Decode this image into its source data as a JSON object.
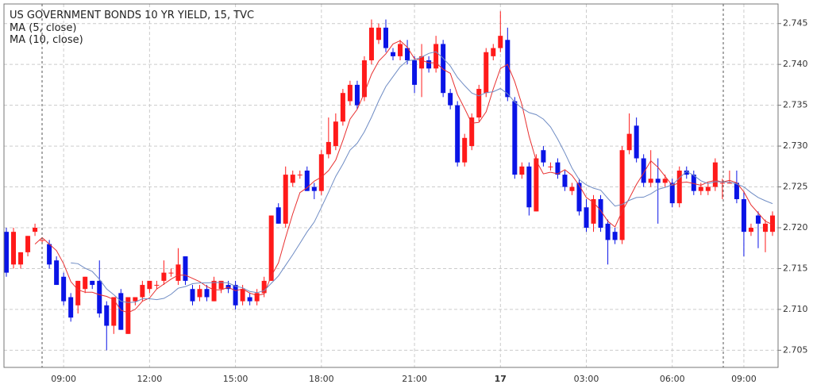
{
  "chart_data": {
    "type": "candlestick",
    "title": "US GOVERNMENT BONDS 10 YR YIELD, 15, TVC",
    "up_color": "#ff1a1a",
    "down_color": "#0a14e6",
    "indicators": [
      {
        "name": "MA (5, close)",
        "period": 5,
        "color": "#e83030"
      },
      {
        "name": "MA (10, close)",
        "period": 10,
        "color": "#6f8cc4"
      }
    ],
    "ylim": [
      2.7029,
      2.7474
    ],
    "yticks": [
      2.705,
      {
        "value": 2.71,
        "label": "2.710"
      },
      2.715,
      {
        "value": 2.72,
        "label": "2.720"
      },
      2.725,
      {
        "value": 2.73,
        "label": "2.730"
      },
      2.735,
      {
        "value": 2.74,
        "label": "2.740"
      },
      2.745
    ],
    "grid": true,
    "categories": [
      null,
      null,
      null,
      null,
      null,
      null,
      null,
      null,
      "09:00",
      null,
      null,
      null,
      null,
      null,
      null,
      null,
      null,
      null,
      null,
      null,
      "12:00",
      null,
      null,
      null,
      null,
      null,
      null,
      null,
      null,
      null,
      null,
      null,
      "15:00",
      null,
      null,
      null,
      null,
      null,
      null,
      null,
      null,
      null,
      null,
      null,
      "18:00",
      null,
      null,
      null,
      null,
      null,
      null,
      null,
      null,
      null,
      null,
      null,
      null,
      "21:00",
      null,
      null,
      null,
      null,
      null,
      null,
      null,
      null,
      null,
      null,
      null,
      "17",
      null,
      null,
      null,
      null,
      null,
      null,
      null,
      null,
      null,
      null,
      null,
      "03:00",
      null,
      null,
      null,
      null,
      null,
      null,
      null,
      null,
      null,
      null,
      null,
      "06:00",
      null,
      null,
      null,
      null,
      null,
      null,
      null,
      null,
      null,
      "09:00",
      null,
      null,
      null,
      null
    ],
    "ohlc": [
      [
        2.7195,
        2.72,
        2.714,
        2.7145
      ],
      [
        2.7155,
        2.72,
        2.715,
        2.7195
      ],
      [
        2.7155,
        2.717,
        2.715,
        2.717
      ],
      [
        2.717,
        2.719,
        2.7165,
        2.719
      ],
      [
        2.7195,
        2.7205,
        2.719,
        2.72
      ],
      [
        2.7185,
        2.7185,
        2.718,
        2.7185
      ],
      [
        2.718,
        2.7185,
        2.715,
        2.7155
      ],
      [
        2.716,
        2.7165,
        2.713,
        2.713
      ],
      [
        2.714,
        2.7145,
        2.7105,
        2.711
      ],
      [
        2.7115,
        2.712,
        2.7085,
        2.709
      ],
      [
        2.7105,
        2.7135,
        2.7095,
        2.7135
      ],
      [
        2.7125,
        2.714,
        2.712,
        2.714
      ],
      [
        2.7135,
        2.7135,
        2.7125,
        2.713
      ],
      [
        2.7135,
        2.716,
        2.709,
        2.7095
      ],
      [
        2.7105,
        2.711,
        2.705,
        2.708
      ],
      [
        2.708,
        2.7115,
        2.707,
        2.7115
      ],
      [
        2.712,
        2.7125,
        2.7075,
        2.7075
      ],
      [
        2.707,
        2.7115,
        2.707,
        2.7115
      ],
      [
        2.711,
        2.7115,
        2.7105,
        2.7115
      ],
      [
        2.7115,
        2.7135,
        2.711,
        2.713
      ],
      [
        2.7125,
        2.7135,
        2.712,
        2.7135
      ],
      [
        2.713,
        2.7135,
        2.7125,
        2.713
      ],
      [
        2.7135,
        2.716,
        2.713,
        2.7145
      ],
      [
        2.7145,
        2.715,
        2.714,
        2.7145
      ],
      [
        2.7135,
        2.7175,
        2.713,
        2.7155
      ],
      [
        2.7165,
        2.7165,
        2.713,
        2.7135
      ],
      [
        2.7125,
        2.713,
        2.7105,
        2.711
      ],
      [
        2.7115,
        2.713,
        2.711,
        2.7125
      ],
      [
        2.7125,
        2.713,
        2.711,
        2.7115
      ],
      [
        2.711,
        2.714,
        2.711,
        2.7135
      ],
      [
        2.7125,
        2.7135,
        2.712,
        2.7135
      ],
      [
        2.713,
        2.7135,
        2.712,
        2.7125
      ],
      [
        2.713,
        2.7135,
        2.71,
        2.7105
      ],
      [
        2.711,
        2.713,
        2.7105,
        2.7125
      ],
      [
        2.7115,
        2.712,
        2.7105,
        2.711
      ],
      [
        2.711,
        2.7125,
        2.7105,
        2.712
      ],
      [
        2.712,
        2.714,
        2.7115,
        2.7135
      ],
      [
        2.7135,
        2.7215,
        2.7135,
        2.7215
      ],
      [
        2.7225,
        2.723,
        2.7205,
        2.7205
      ],
      [
        2.7205,
        2.7275,
        2.72,
        2.7265
      ],
      [
        2.7255,
        2.727,
        2.725,
        2.7265
      ],
      [
        2.7265,
        2.727,
        2.726,
        2.7265
      ],
      [
        2.727,
        2.7275,
        2.7245,
        2.7245
      ],
      [
        2.725,
        2.7255,
        2.7235,
        2.7245
      ],
      [
        2.7245,
        2.7295,
        2.724,
        2.729
      ],
      [
        2.729,
        2.7335,
        2.7285,
        2.7305
      ],
      [
        2.73,
        2.734,
        2.7295,
        2.733
      ],
      [
        2.733,
        2.737,
        2.7325,
        2.7365
      ],
      [
        2.7355,
        2.738,
        2.735,
        2.7375
      ],
      [
        2.7375,
        2.738,
        2.7345,
        2.735
      ],
      [
        2.736,
        2.741,
        2.7355,
        2.7405
      ],
      [
        2.7405,
        2.7455,
        2.74,
        2.7445
      ],
      [
        2.743,
        2.745,
        2.7425,
        2.7445
      ],
      [
        2.7445,
        2.7455,
        2.7415,
        2.742
      ],
      [
        2.7415,
        2.742,
        2.7405,
        2.741
      ],
      [
        2.741,
        2.743,
        2.7405,
        2.7425
      ],
      [
        2.742,
        2.743,
        2.74,
        2.7405
      ],
      [
        2.7405,
        2.741,
        2.7365,
        2.7375
      ],
      [
        2.7395,
        2.7425,
        2.736,
        2.741
      ],
      [
        2.7405,
        2.741,
        2.739,
        2.7395
      ],
      [
        2.7395,
        2.7435,
        2.739,
        2.7425
      ],
      [
        2.7425,
        2.743,
        2.736,
        2.7365
      ],
      [
        2.7365,
        2.737,
        2.7345,
        2.735
      ],
      [
        2.735,
        2.7355,
        2.7275,
        2.728
      ],
      [
        2.728,
        2.7315,
        2.7275,
        2.731
      ],
      [
        2.73,
        2.734,
        2.7295,
        2.7335
      ],
      [
        2.7335,
        2.7375,
        2.733,
        2.737
      ],
      [
        2.7365,
        2.742,
        2.736,
        2.7415
      ],
      [
        2.741,
        2.7425,
        2.7405,
        2.742
      ],
      [
        2.742,
        2.7465,
        2.7415,
        2.7435
      ],
      [
        2.743,
        2.7445,
        2.7355,
        2.736
      ],
      [
        2.7355,
        2.736,
        2.726,
        2.7265
      ],
      [
        2.7265,
        2.728,
        2.726,
        2.7275
      ],
      [
        2.7275,
        2.728,
        2.7215,
        2.7225
      ],
      [
        2.722,
        2.729,
        2.722,
        2.7285
      ],
      [
        2.7295,
        2.73,
        2.7275,
        2.728
      ],
      [
        2.7275,
        2.728,
        2.727,
        2.7275
      ],
      [
        2.728,
        2.7285,
        2.726,
        2.7265
      ],
      [
        2.7265,
        2.727,
        2.7245,
        2.725
      ],
      [
        2.7245,
        2.7255,
        2.724,
        2.725
      ],
      [
        2.7255,
        2.726,
        2.7215,
        2.722
      ],
      [
        2.7225,
        2.7235,
        2.7195,
        2.72
      ],
      [
        2.7205,
        2.724,
        2.7195,
        2.7235
      ],
      [
        2.7235,
        2.724,
        2.7195,
        2.72
      ],
      [
        2.7205,
        2.721,
        2.7155,
        2.7185
      ],
      [
        2.7195,
        2.72,
        2.718,
        2.7185
      ],
      [
        2.7185,
        2.73,
        2.718,
        2.7295
      ],
      [
        2.7295,
        2.734,
        2.729,
        2.7315
      ],
      [
        2.7325,
        2.7335,
        2.728,
        2.7285
      ],
      [
        2.7285,
        2.729,
        2.725,
        2.7255
      ],
      [
        2.7255,
        2.7295,
        2.725,
        2.726
      ],
      [
        2.726,
        2.7285,
        2.7205,
        2.7255
      ],
      [
        2.7255,
        2.7265,
        2.725,
        2.726
      ],
      [
        2.7255,
        2.726,
        2.7225,
        2.723
      ],
      [
        2.723,
        2.7275,
        2.7225,
        2.727
      ],
      [
        2.727,
        2.7275,
        2.726,
        2.7265
      ],
      [
        2.7265,
        2.727,
        2.724,
        2.7245
      ],
      [
        2.7245,
        2.7255,
        2.724,
        2.725
      ],
      [
        2.7245,
        2.7255,
        2.724,
        2.725
      ],
      [
        2.725,
        2.7285,
        2.7245,
        2.728
      ],
      [
        2.7255,
        2.726,
        2.7235,
        2.7255
      ],
      [
        2.7255,
        2.727,
        2.7255,
        2.7255
      ],
      [
        2.7255,
        2.727,
        2.723,
        2.7235
      ],
      [
        2.7235,
        2.7245,
        2.7165,
        2.7195
      ],
      [
        2.7195,
        2.7205,
        2.719,
        2.72
      ],
      [
        2.7215,
        2.722,
        2.7175,
        2.7205
      ],
      [
        2.7195,
        2.721,
        2.717,
        2.7205
      ],
      [
        2.7195,
        2.722,
        2.719,
        2.7215
      ]
    ]
  }
}
